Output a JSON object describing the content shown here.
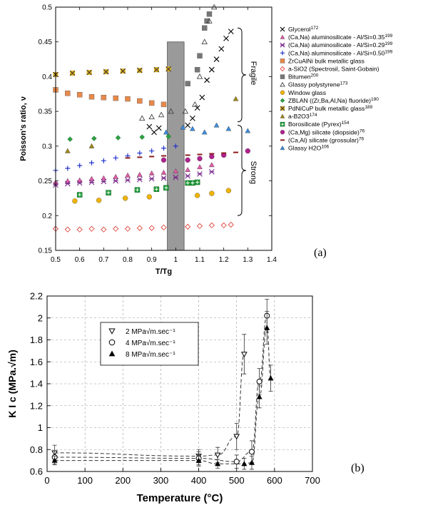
{
  "panel_labels": [
    "(a)",
    "(b)"
  ],
  "chart_data": [
    {
      "type": "scatter",
      "xlabel": "T/Tg",
      "ylabel": "Poisson's ratio, ν",
      "xlim": [
        0.5,
        1.4
      ],
      "ylim": [
        0.15,
        0.5
      ],
      "xticks": [
        "0.5",
        "0.6",
        "0.7",
        "0.8",
        "0.9",
        "1",
        "1.1",
        "1.2",
        "1.3",
        "1.4"
      ],
      "yticks": [
        "0.15",
        "0.2",
        "0.25",
        "0.3",
        "0.35",
        "0.4",
        "0.45",
        "0.5"
      ],
      "tg_band": [
        0.965,
        1.035
      ],
      "annotations": {
        "upper": "Fragile",
        "lower": "Strong"
      },
      "legend_position": "right",
      "series": [
        {
          "name": "Glycerol",
          "sup": "172",
          "marker": "x",
          "color": "#000000",
          "x": [
            0.89,
            0.91,
            0.93,
            1.05,
            1.07,
            1.09,
            1.11,
            1.13,
            1.15,
            1.17,
            1.19,
            1.21,
            1.23
          ],
          "y": [
            0.328,
            0.32,
            0.326,
            0.33,
            0.34,
            0.355,
            0.37,
            0.395,
            0.41,
            0.425,
            0.44,
            0.455,
            0.465
          ]
        },
        {
          "name": "(Ca,Na) aluminosilicate - Al/Si=0.35",
          "sup": "199",
          "marker": "tri",
          "color": "#e25ba8",
          "x": [
            0.5,
            0.55,
            0.6,
            0.65,
            0.7,
            0.75,
            0.8,
            0.85,
            0.9,
            0.95,
            1.0,
            1.05,
            1.1,
            1.15
          ],
          "y": [
            0.248,
            0.25,
            0.251,
            0.253,
            0.254,
            0.256,
            0.258,
            0.259,
            0.261,
            0.262,
            0.264,
            0.266,
            0.27,
            0.273
          ]
        },
        {
          "name": "(Ca,Na) aluminosilicate - Al/Si=0.29",
          "sup": "199",
          "marker": "xstar",
          "color": "#7a2a8c",
          "x": [
            0.5,
            0.55,
            0.6,
            0.65,
            0.7,
            0.75,
            0.8,
            0.85,
            0.9,
            0.95,
            1.0,
            1.05,
            1.1,
            1.15
          ],
          "y": [
            0.244,
            0.246,
            0.247,
            0.248,
            0.249,
            0.25,
            0.251,
            0.252,
            0.253,
            0.254,
            0.255,
            0.257,
            0.26,
            0.263
          ]
        },
        {
          "name": "(Ca,Na) aluminosilicate - Al/Si=0.50",
          "sup": "199",
          "marker": "plus",
          "color": "#2233cc",
          "x": [
            0.5,
            0.55,
            0.6,
            0.65,
            0.7,
            0.75,
            0.8,
            0.85,
            0.9,
            0.95,
            1.0
          ],
          "y": [
            0.265,
            0.268,
            0.272,
            0.276,
            0.279,
            0.283,
            0.286,
            0.29,
            0.293,
            0.297,
            0.3
          ]
        },
        {
          "name": "ZrCuAlNi bulk metallic glass",
          "sup": "",
          "marker": "square",
          "color": "#e8894a",
          "x": [
            0.5,
            0.55,
            0.6,
            0.65,
            0.7,
            0.75,
            0.8,
            0.85,
            0.9,
            0.95
          ],
          "y": [
            0.381,
            0.376,
            0.374,
            0.371,
            0.37,
            0.369,
            0.368,
            0.365,
            0.362,
            0.36
          ]
        },
        {
          "name": "a-SiO2 (Spectrosil, Saint-Gobain)",
          "sup": "",
          "marker": "diamond-open",
          "color": "#e0453c",
          "x": [
            0.5,
            0.55,
            0.6,
            0.65,
            0.7,
            0.75,
            0.8,
            0.85,
            0.9,
            0.95,
            1.05,
            1.1,
            1.15,
            1.2,
            1.23
          ],
          "y": [
            0.181,
            0.18,
            0.18,
            0.181,
            0.18,
            0.181,
            0.181,
            0.182,
            0.182,
            0.183,
            0.184,
            0.185,
            0.186,
            0.186,
            0.187
          ]
        },
        {
          "name": "Bitumen",
          "sup": "200",
          "marker": "square",
          "color": "#777777",
          "x": [
            1.05,
            1.09,
            1.1,
            1.12,
            1.13,
            1.14
          ],
          "y": [
            0.39,
            0.41,
            0.43,
            0.47,
            0.48,
            0.49
          ]
        },
        {
          "name": "Glassy polystyrene",
          "sup": "173",
          "marker": "tri-open",
          "color": "#444444",
          "x": [
            0.86,
            0.9,
            0.94,
            0.98,
            1.04,
            1.08,
            1.1,
            1.12,
            1.14,
            1.16
          ],
          "y": [
            0.34,
            0.342,
            0.345,
            0.35,
            0.35,
            0.36,
            0.4,
            0.45,
            0.48,
            0.5
          ]
        },
        {
          "name": "Window glass",
          "sup": "",
          "marker": "circle",
          "color": "#f0b400",
          "x": [
            0.58,
            0.68,
            0.79,
            0.89,
            1.09,
            1.15,
            1.22
          ],
          "y": [
            0.221,
            0.222,
            0.225,
            0.227,
            0.229,
            0.232,
            0.236
          ]
        },
        {
          "name": "ZBLAN ((Zr,Ba,Al,Na) fluoride)",
          "sup": "190",
          "marker": "diamond",
          "color": "#2ea043",
          "x": [
            0.56,
            0.66,
            0.76,
            0.86,
            0.97
          ],
          "y": [
            0.31,
            0.311,
            0.312,
            0.313,
            0.314
          ]
        },
        {
          "name": "PdNiCuP bulk metallic glass",
          "sup": "189",
          "marker": "xbox",
          "color": "#e0b020",
          "x": [
            0.5,
            0.57,
            0.64,
            0.71,
            0.78,
            0.85,
            0.92,
            0.97
          ],
          "y": [
            0.403,
            0.405,
            0.406,
            0.407,
            0.408,
            0.409,
            0.41,
            0.411
          ]
        },
        {
          "name": "a-B2O3",
          "sup": "174",
          "marker": "tri",
          "color": "#a08a1a",
          "x": [
            0.55,
            0.65,
            1.25
          ],
          "y": [
            0.293,
            0.3,
            0.368
          ]
        },
        {
          "name": "Borosilicate (Pyrex)",
          "sup": "154",
          "marker": "sqplus",
          "color": "#1f9d3a",
          "x": [
            0.6,
            0.72,
            0.84,
            0.92,
            0.96,
            1.05,
            1.07,
            1.09
          ],
          "y": [
            0.23,
            0.233,
            0.237,
            0.238,
            0.24,
            0.247,
            0.247,
            0.248
          ]
        },
        {
          "name": "(Ca,Mg) silicate (diopside)",
          "sup": "76",
          "marker": "circle",
          "color": "#b0208e",
          "x": [
            0.95,
            1.05,
            1.1,
            1.15,
            1.2,
            1.3
          ],
          "y": [
            0.28,
            0.28,
            0.282,
            0.285,
            0.287,
            0.293
          ]
        },
        {
          "name": "(Ca,Al) silicate (grossular)",
          "sup": "76",
          "marker": "dash",
          "color": "#8b1a1a",
          "x": [
            0.8,
            0.85,
            0.9,
            0.95,
            1.05,
            1.1,
            1.15,
            1.2,
            1.25
          ],
          "y": [
            0.283,
            0.284,
            0.285,
            0.286,
            0.287,
            0.288,
            0.289,
            0.29,
            0.291
          ]
        },
        {
          "name": "Glassy H2O",
          "sup": "106",
          "marker": "tri",
          "color": "#3b8de0",
          "x": [
            0.96,
            1.03,
            1.07,
            1.12,
            1.17,
            1.22,
            1.3
          ],
          "y": [
            0.32,
            0.327,
            0.325,
            0.32,
            0.33,
            0.325,
            0.322
          ]
        }
      ]
    },
    {
      "type": "line",
      "xlabel": "Temperature (°C)",
      "ylabel": "K I c (MPa.√m)",
      "xlim": [
        0,
        700
      ],
      "ylim": [
        0.6,
        2.2
      ],
      "xticks": [
        "0",
        "100",
        "200",
        "300",
        "400",
        "500",
        "600",
        "700"
      ],
      "yticks": [
        "0.6",
        "0.8",
        "1",
        "1.2",
        "1.4",
        "1.6",
        "1.8",
        "2",
        "2.2"
      ],
      "grid": "dashed",
      "legend_position": "top-left",
      "series": [
        {
          "name": "2 MPa√m.sec⁻¹",
          "marker": "tri-down-open",
          "x": [
            20,
            400,
            450,
            500,
            520
          ],
          "y": [
            0.77,
            0.74,
            0.75,
            0.92,
            1.67
          ],
          "err": [
            0.07,
            0.06,
            0.07,
            0.12,
            0.18
          ]
        },
        {
          "name": "4 MPa√m.sec⁻¹",
          "marker": "circle-open",
          "x": [
            20,
            400,
            500,
            540,
            560,
            580
          ],
          "y": [
            0.73,
            0.72,
            0.69,
            0.78,
            1.42,
            2.02
          ],
          "err": [
            0.06,
            0.06,
            0.06,
            0.1,
            0.12,
            0.15
          ]
        },
        {
          "name": "8 MPa√m.sec⁻¹",
          "marker": "tri-filled",
          "x": [
            20,
            400,
            450,
            520,
            540,
            560,
            580,
            590
          ],
          "y": [
            0.7,
            0.7,
            0.67,
            0.67,
            0.68,
            1.28,
            1.91,
            1.45
          ],
          "err": [
            0.04,
            0.05,
            0.04,
            0.05,
            0.06,
            0.1,
            0.15,
            0.12
          ]
        }
      ]
    }
  ]
}
